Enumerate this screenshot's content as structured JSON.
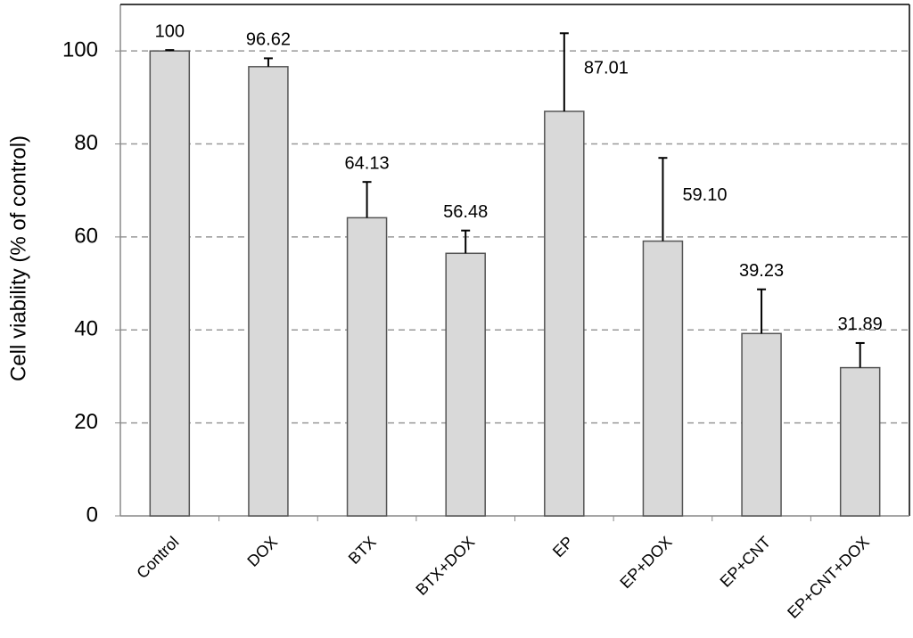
{
  "chart_data": {
    "type": "bar",
    "y_label": "Cell viability (% of control)",
    "categories": [
      "Control",
      "DOX",
      "BTX",
      "BTX+DOX",
      "EP",
      "EP+DOX",
      "EP+CNT",
      "EP+CNT+DOX"
    ],
    "values": [
      100,
      96.62,
      64.13,
      56.48,
      87.01,
      59.1,
      39.23,
      31.89
    ],
    "value_labels": [
      "100",
      "96.62",
      "64.13",
      "56.48",
      "87.01",
      "59.10",
      "39.23",
      "31.89"
    ],
    "errors": [
      0.2,
      1.8,
      7.7,
      4.9,
      16.8,
      17.9,
      9.5,
      5.3
    ],
    "color": "#d9d9d9",
    "ylim": [
      0,
      110
    ],
    "yticks": [
      0,
      20,
      40,
      60,
      80,
      100
    ],
    "grid": true
  }
}
